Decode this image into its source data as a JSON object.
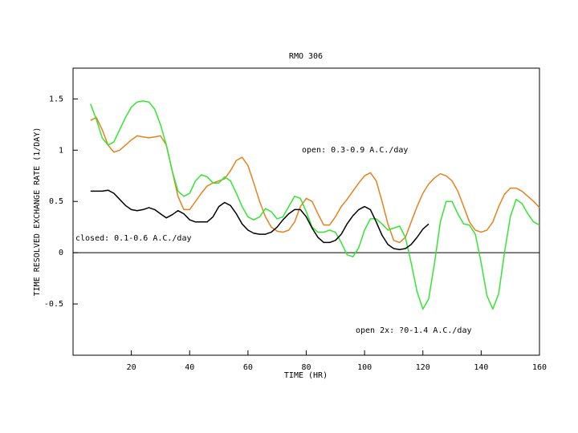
{
  "chart_data": {
    "type": "line",
    "title": "RMO 306",
    "xlabel": "TIME (HR)",
    "ylabel": "TIME RESOLVED EXCHANGE RATE (1/DAY)",
    "annotations": [
      "open: 0.3-0.9 A.C./day",
      "closed: 0.1-0.6 A.C./day",
      "open 2x: ?0-1.4 A.C./day"
    ],
    "xlim": [
      0,
      160
    ],
    "xticks": [
      20,
      40,
      60,
      80,
      100,
      120,
      140,
      160
    ],
    "ylim": [
      -1,
      1.8
    ],
    "yticks": [
      -0.5,
      0,
      0.5,
      1,
      1.5
    ],
    "zero_line": true,
    "x": [
      6,
      8,
      10,
      12,
      14,
      16,
      18,
      20,
      22,
      24,
      26,
      28,
      30,
      32,
      34,
      36,
      38,
      40,
      42,
      44,
      46,
      48,
      50,
      52,
      54,
      56,
      58,
      60,
      62,
      64,
      66,
      68,
      70,
      72,
      74,
      76,
      78,
      80,
      82,
      84,
      86,
      88,
      90,
      92,
      94,
      96,
      98,
      100,
      102,
      104,
      106,
      108,
      110,
      112,
      114,
      116,
      118,
      120,
      122,
      124,
      126,
      128,
      130,
      132,
      134,
      136,
      138,
      140,
      142,
      144,
      146,
      148,
      150,
      152,
      154,
      156,
      158,
      160
    ],
    "series": [
      {
        "color": "#e8801e",
        "values": [
          1.29,
          1.32,
          1.2,
          1.05,
          0.98,
          1.0,
          1.05,
          1.1,
          1.14,
          1.13,
          1.12,
          1.13,
          1.14,
          1.05,
          0.8,
          0.55,
          0.42,
          0.42,
          0.5,
          0.58,
          0.65,
          0.68,
          0.7,
          0.72,
          0.8,
          0.9,
          0.93,
          0.85,
          0.68,
          0.5,
          0.35,
          0.25,
          0.21,
          0.2,
          0.22,
          0.3,
          0.45,
          0.53,
          0.5,
          0.38,
          0.27,
          0.27,
          0.35,
          0.45,
          0.52,
          0.6,
          0.68,
          0.75,
          0.78,
          0.7,
          0.5,
          0.28,
          0.12,
          0.1,
          0.15,
          0.3,
          0.45,
          0.58,
          0.67,
          0.73,
          0.77,
          0.75,
          0.7,
          0.6,
          0.45,
          0.3,
          0.22,
          0.2,
          0.22,
          0.3,
          0.45,
          0.57,
          0.63,
          0.63,
          0.6,
          0.55,
          0.5,
          0.44
        ]
      },
      {
        "color": "#33e633",
        "values": [
          1.45,
          1.3,
          1.12,
          1.05,
          1.08,
          1.2,
          1.32,
          1.42,
          1.47,
          1.48,
          1.47,
          1.4,
          1.25,
          1.05,
          0.8,
          0.6,
          0.55,
          0.58,
          0.7,
          0.76,
          0.74,
          0.68,
          0.68,
          0.74,
          0.7,
          0.58,
          0.45,
          0.35,
          0.32,
          0.35,
          0.43,
          0.4,
          0.33,
          0.35,
          0.45,
          0.55,
          0.53,
          0.4,
          0.25,
          0.2,
          0.2,
          0.22,
          0.2,
          0.1,
          -0.02,
          -0.04,
          0.05,
          0.22,
          0.33,
          0.33,
          0.28,
          0.22,
          0.24,
          0.26,
          0.15,
          -0.1,
          -0.38,
          -0.55,
          -0.45,
          -0.1,
          0.3,
          0.5,
          0.5,
          0.38,
          0.28,
          0.27,
          0.18,
          -0.1,
          -0.42,
          -0.55,
          -0.4,
          0.0,
          0.35,
          0.52,
          0.48,
          0.38,
          0.3,
          0.27
        ]
      },
      {
        "color": "#000000",
        "values": [
          0.6,
          0.6,
          0.6,
          0.61,
          0.58,
          0.52,
          0.46,
          0.42,
          0.41,
          0.42,
          0.44,
          0.42,
          0.38,
          0.34,
          0.37,
          0.41,
          0.38,
          0.32,
          0.3,
          0.3,
          0.3,
          0.35,
          0.45,
          0.49,
          0.46,
          0.38,
          0.28,
          0.22,
          0.19,
          0.18,
          0.18,
          0.2,
          0.25,
          0.32,
          0.38,
          0.42,
          0.42,
          0.35,
          0.24,
          0.15,
          0.1,
          0.1,
          0.12,
          0.18,
          0.28,
          0.36,
          0.42,
          0.45,
          0.42,
          0.3,
          0.17,
          0.08,
          0.04,
          0.03,
          0.04,
          0.08,
          0.15,
          0.23,
          0.28,
          null,
          null,
          null,
          null,
          null,
          null,
          null,
          null,
          null,
          null,
          null,
          null,
          null,
          null,
          null,
          null,
          null,
          null,
          null
        ]
      }
    ]
  }
}
